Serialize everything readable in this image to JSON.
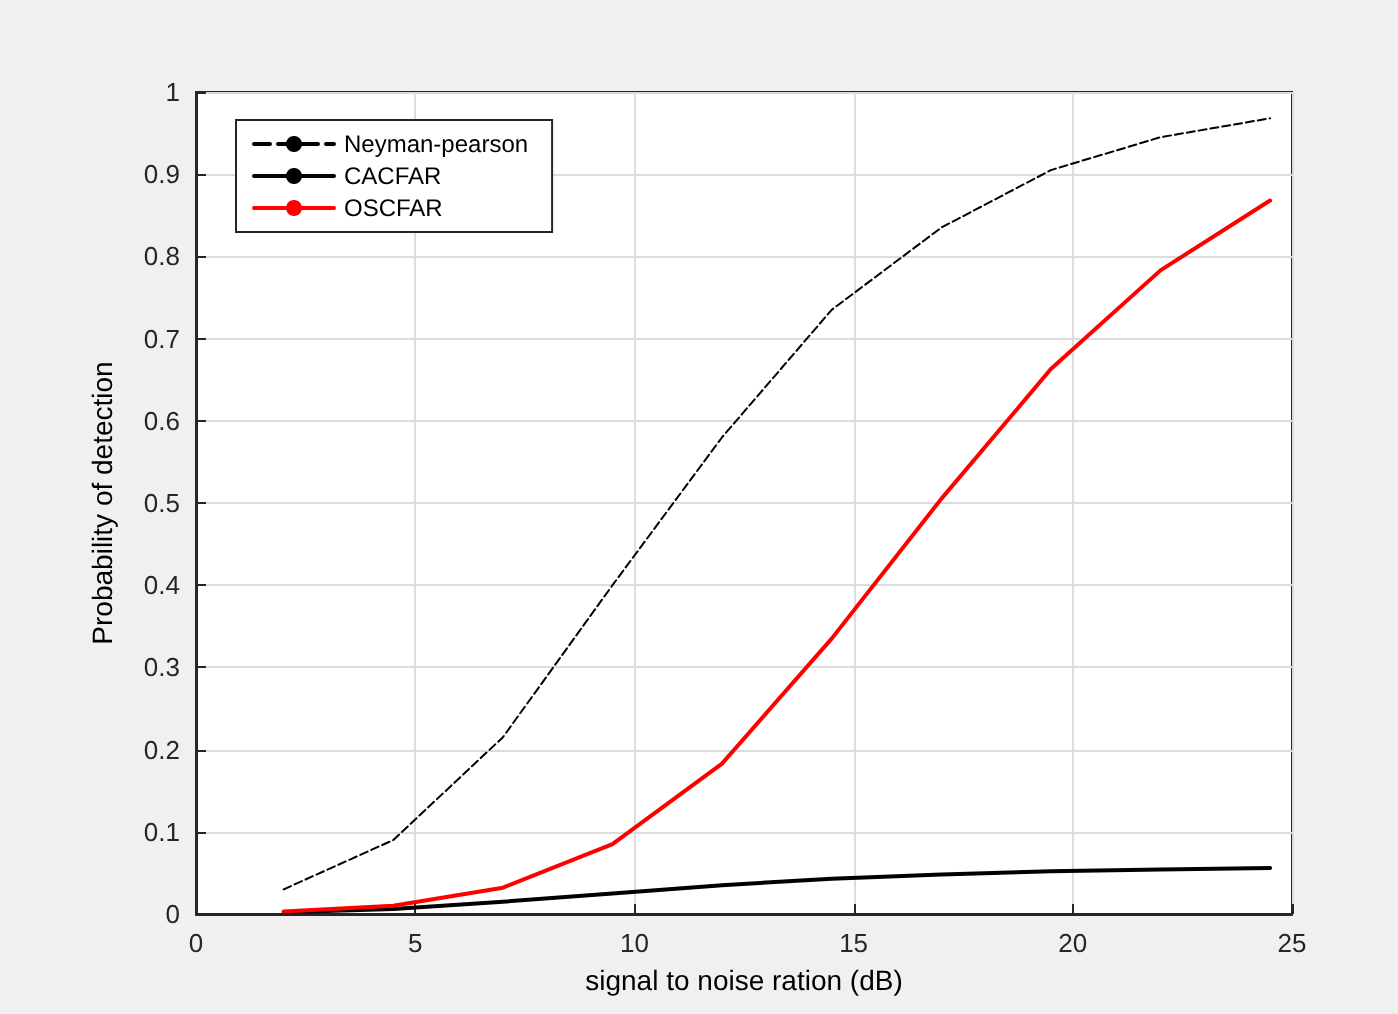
{
  "chart_data": {
    "type": "line",
    "xlabel": "signal to noise ration (dB)",
    "ylabel": "Probability of detection",
    "x": [
      2,
      4.5,
      7,
      9.5,
      12,
      14.5,
      17,
      19.5,
      22,
      24.5
    ],
    "series": [
      {
        "name": "Neyman-pearson",
        "color": "#000000",
        "line_style": "dashed",
        "values": [
          0.03,
          0.09,
          0.215,
          0.4,
          0.58,
          0.735,
          0.835,
          0.905,
          0.945,
          0.968
        ]
      },
      {
        "name": "CACFAR",
        "color": "#000000",
        "values": [
          0.002,
          0.006,
          0.015,
          0.025,
          0.035,
          0.043,
          0.048,
          0.052,
          0.054,
          0.056
        ]
      },
      {
        "name": "OSCFAR",
        "color": "#ff0000",
        "values": [
          0.003,
          0.01,
          0.032,
          0.085,
          0.183,
          0.335,
          0.505,
          0.663,
          0.783,
          0.868
        ]
      }
    ],
    "xlim": [
      0,
      25
    ],
    "xticks": [
      0,
      5,
      10,
      15,
      20,
      25
    ],
    "ylim": [
      0,
      1
    ],
    "yticks": [
      0,
      0.1,
      0.2,
      0.3,
      0.4,
      0.5,
      0.6,
      0.7,
      0.8,
      0.9,
      1
    ],
    "grid": true,
    "legend": "top left",
    "marker": "none",
    "line_style": "solid"
  }
}
